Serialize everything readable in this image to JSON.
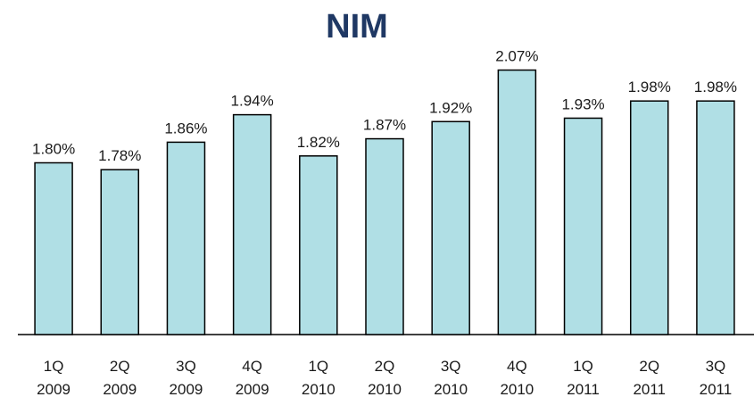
{
  "chart_data": {
    "type": "bar",
    "title": "NIM",
    "categories": [
      "1Q 2009",
      "2Q 2009",
      "3Q 2009",
      "4Q 2009",
      "1Q 2010",
      "2Q 2010",
      "3Q 2010",
      "4Q 2010",
      "1Q 2011",
      "2Q 2011",
      "3Q 2011"
    ],
    "values": [
      1.8,
      1.78,
      1.86,
      1.94,
      1.82,
      1.87,
      1.92,
      2.07,
      1.93,
      1.98,
      1.98
    ],
    "value_labels": [
      "1.80%",
      "1.78%",
      "1.86%",
      "1.94%",
      "1.82%",
      "1.87%",
      "1.92%",
      "2.07%",
      "1.93%",
      "1.98%",
      "1.98%"
    ],
    "color": "#b0dfe5",
    "ylim": [
      1.3,
      2.1
    ]
  }
}
